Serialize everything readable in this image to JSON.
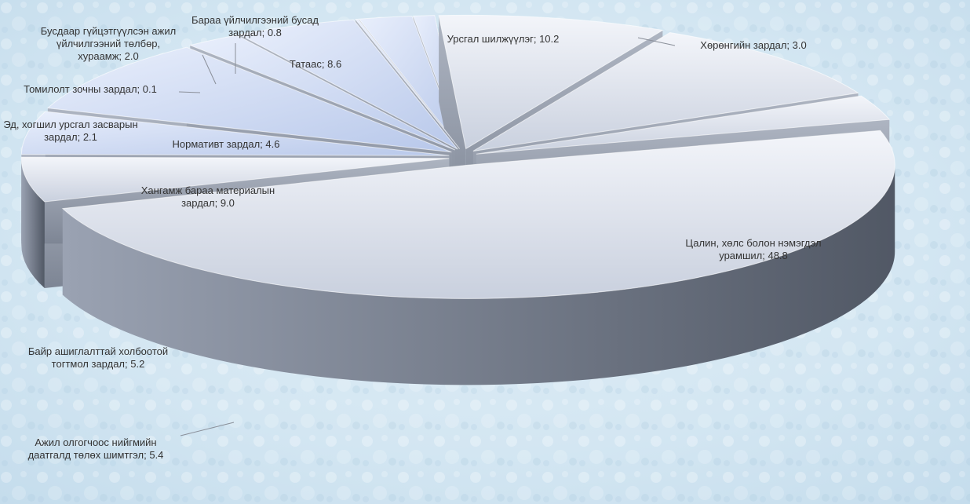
{
  "chart_data": {
    "type": "pie",
    "style": "3d-exploded",
    "title": "",
    "unit": "%",
    "legend": "none",
    "slices": [
      {
        "name": "Цалин, хөлс болон нэмэгдэл урамшил",
        "value": 48.8,
        "label_lines": [
          "Цалин, хөлс болон нэмэгдэл",
          "урамшил; 48.8"
        ]
      },
      {
        "name": "Ажил олгогчоос нийгмийн даатгалд төлөх шимтгэл",
        "value": 5.4,
        "label_lines": [
          "Ажил олгогчоос нийгмийн",
          "даатгалд төлөх шимтгэл; 5.4"
        ]
      },
      {
        "name": "Байр ашиглалттай холбоотой тогтмол зардал",
        "value": 5.2,
        "label_lines": [
          "Байр ашиглалттай холбоотой",
          "тогтмол зардал; 5.2"
        ]
      },
      {
        "name": "Хангамж бараа материалын зардал",
        "value": 9.0,
        "label_lines": [
          "Хангамж бараа материалын",
          "зардал; 9.0"
        ]
      },
      {
        "name": "Эд, хогшил урсгал засварын зардал",
        "value": 2.1,
        "label_lines": [
          "Эд, хогшил урсгал засварын",
          "зардал; 2.1"
        ]
      },
      {
        "name": "Нормативт зардал",
        "value": 4.6,
        "label_lines": [
          "Нормативт зардал; 4.6"
        ]
      },
      {
        "name": "Томилолт зочны зардал",
        "value": 0.1,
        "label_lines": [
          "Томилолт зочны зардал; 0.1"
        ]
      },
      {
        "name": "Бусдаар гүйцэтгүүлсэн ажил үйлчилгээний төлбөр, хураамж",
        "value": 2.0,
        "label_lines": [
          "Бусдаар гүйцэтгүүлсэн ажил",
          "үйлчилгээний төлбөр,",
          "хураамж; 2.0"
        ]
      },
      {
        "name": "Бараа үйлчилгээний бусад зардал",
        "value": 0.8,
        "label_lines": [
          "Бараа үйлчилгээний бусад",
          "зардал; 0.8"
        ]
      },
      {
        "name": "Татаас",
        "value": 8.6,
        "label_lines": [
          "Татаас; 8.6"
        ]
      },
      {
        "name": "Урсгал шилжүүлэг",
        "value": 10.2,
        "label_lines": [
          "Урсгал шилжүүлэг; 10.2"
        ]
      },
      {
        "name": "Хөрөнгийн зардал",
        "value": 3.0,
        "label_lines": [
          "Хөрөнгийн зардал; 3.0"
        ]
      }
    ]
  }
}
